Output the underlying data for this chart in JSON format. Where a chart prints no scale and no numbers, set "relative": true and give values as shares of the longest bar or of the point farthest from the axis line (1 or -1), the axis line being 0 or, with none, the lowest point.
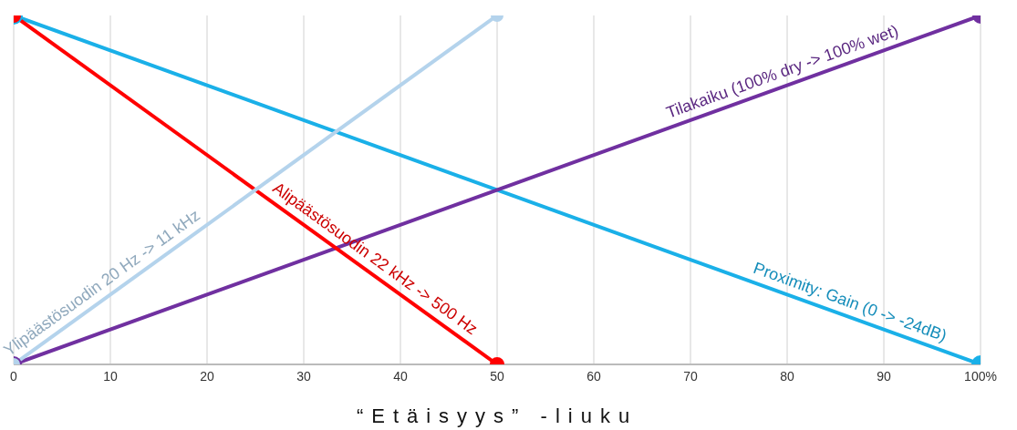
{
  "chart_data": {
    "type": "line",
    "relative": true,
    "xlabel": "“Etäisyys” -liuku",
    "xlim": [
      0,
      100
    ],
    "xticks": [
      0,
      10,
      20,
      30,
      40,
      50,
      60,
      70,
      80,
      90,
      {
        "value": 100,
        "label": "100%"
      }
    ],
    "grid": "x",
    "marker": "circle",
    "line_style": "solid",
    "series": [
      {
        "name": "Proximity: Gain (0 -> -24dB)",
        "color": "#1ab0e8",
        "x": [
          0,
          100
        ],
        "values": [
          1,
          0
        ]
      },
      {
        "name": "Tilakaiku (100% dry -> 100% wet)",
        "color": "#7030a0",
        "x": [
          0,
          100
        ],
        "values": [
          0,
          1
        ]
      },
      {
        "name": "Alipäästösuodin 22 kHz -> 500 Hz",
        "color": "#ff0000",
        "x": [
          0,
          50
        ],
        "values": [
          1,
          0
        ]
      },
      {
        "name": "Ylipäästösuodin 20 Hz -> 11 kHz",
        "color": "#b4d3ec",
        "x": [
          0,
          50
        ],
        "values": [
          0,
          1
        ]
      }
    ]
  }
}
